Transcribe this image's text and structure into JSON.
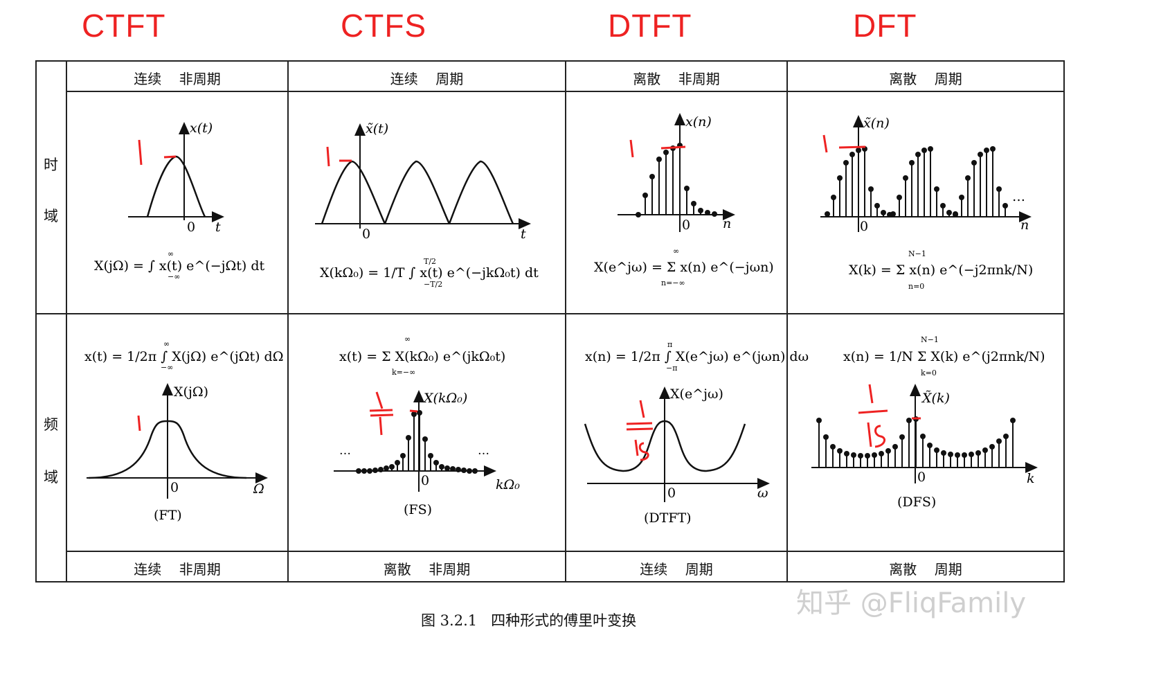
{
  "handwritten_titles": [
    "CTFT",
    "CTFS",
    "DTFT",
    "DFT"
  ],
  "columns": [
    {
      "time_header": "连续    非周期",
      "freq_footer": "连续    非周期",
      "label": "(FT)"
    },
    {
      "time_header": "连续    周期",
      "freq_footer": "离散    非周期",
      "label": "(FS)"
    },
    {
      "time_header": "离散    非周期",
      "freq_footer": "连续    周期",
      "label": "(DTFT)"
    },
    {
      "time_header": "离散    周期",
      "freq_footer": "离散    周期",
      "label": "(DFS)"
    }
  ],
  "row_labels": {
    "time": [
      "时",
      "域"
    ],
    "freq": [
      "频",
      "域"
    ]
  },
  "time_plots": [
    {
      "ylabel": "x(t)",
      "xlabel": "t",
      "origin": "0",
      "formula": "X(jΩ) = ∫ x(t) e^(−jΩt) dt",
      "lim_low": "−∞",
      "lim_high": "∞",
      "mark": "1"
    },
    {
      "ylabel": "x̃(t)",
      "xlabel": "t",
      "origin": "0",
      "formula": "X(kΩ₀) = 1/T ∫ x(t) e^(−jkΩ₀t) dt",
      "lim_low": "−T/2",
      "lim_high": "T/2",
      "mark": "1"
    },
    {
      "ylabel": "x(n)",
      "xlabel": "n",
      "origin": "0",
      "formula": "X(e^jω) = Σ x(n) e^(−jωn)",
      "lim_low": "n=−∞",
      "lim_high": "∞",
      "mark": "1"
    },
    {
      "ylabel": "x̃(n)",
      "xlabel": "n",
      "origin": "0",
      "formula": "X(k) = Σ x(n) e^(−j2πnk/N)",
      "lim_low": "n=0",
      "lim_high": "N−1",
      "mark": "1",
      "ellipsis": "…"
    }
  ],
  "freq_plots": [
    {
      "ylabel": "X(jΩ)",
      "xlabel": "Ω",
      "origin": "0",
      "formula": "x(t) = 1/2π ∫ X(jΩ) e^(jΩt) dΩ",
      "lim_low": "−∞",
      "lim_high": "∞",
      "mark": "1"
    },
    {
      "ylabel": "X(kΩ₀)",
      "xlabel": "kΩ₀",
      "origin": "0",
      "formula": "x(t) = Σ X(kΩ₀) e^(jkΩ₀t)",
      "lim_low": "k=−∞",
      "lim_high": "∞",
      "mark": "1/T",
      "ellipsis": "…"
    },
    {
      "ylabel": "X(e^jω)",
      "xlabel": "ω",
      "origin": "0",
      "formula": "x(n) = 1/2π ∫ X(e^jω) e^(jωn) dω",
      "lim_low": "−π",
      "lim_high": "π",
      "mark": "1/Ts"
    },
    {
      "ylabel": "X̃(k)",
      "xlabel": "k",
      "origin": "0",
      "formula": "x(n) = 1/N Σ X(k) e^(j2πnk/N)",
      "lim_low": "k=0",
      "lim_high": "N−1",
      "mark": "1/Ts"
    }
  ],
  "caption": "图 3.2.1   四种形式的傅里叶变换",
  "watermark": "知乎 @FliqFamily"
}
